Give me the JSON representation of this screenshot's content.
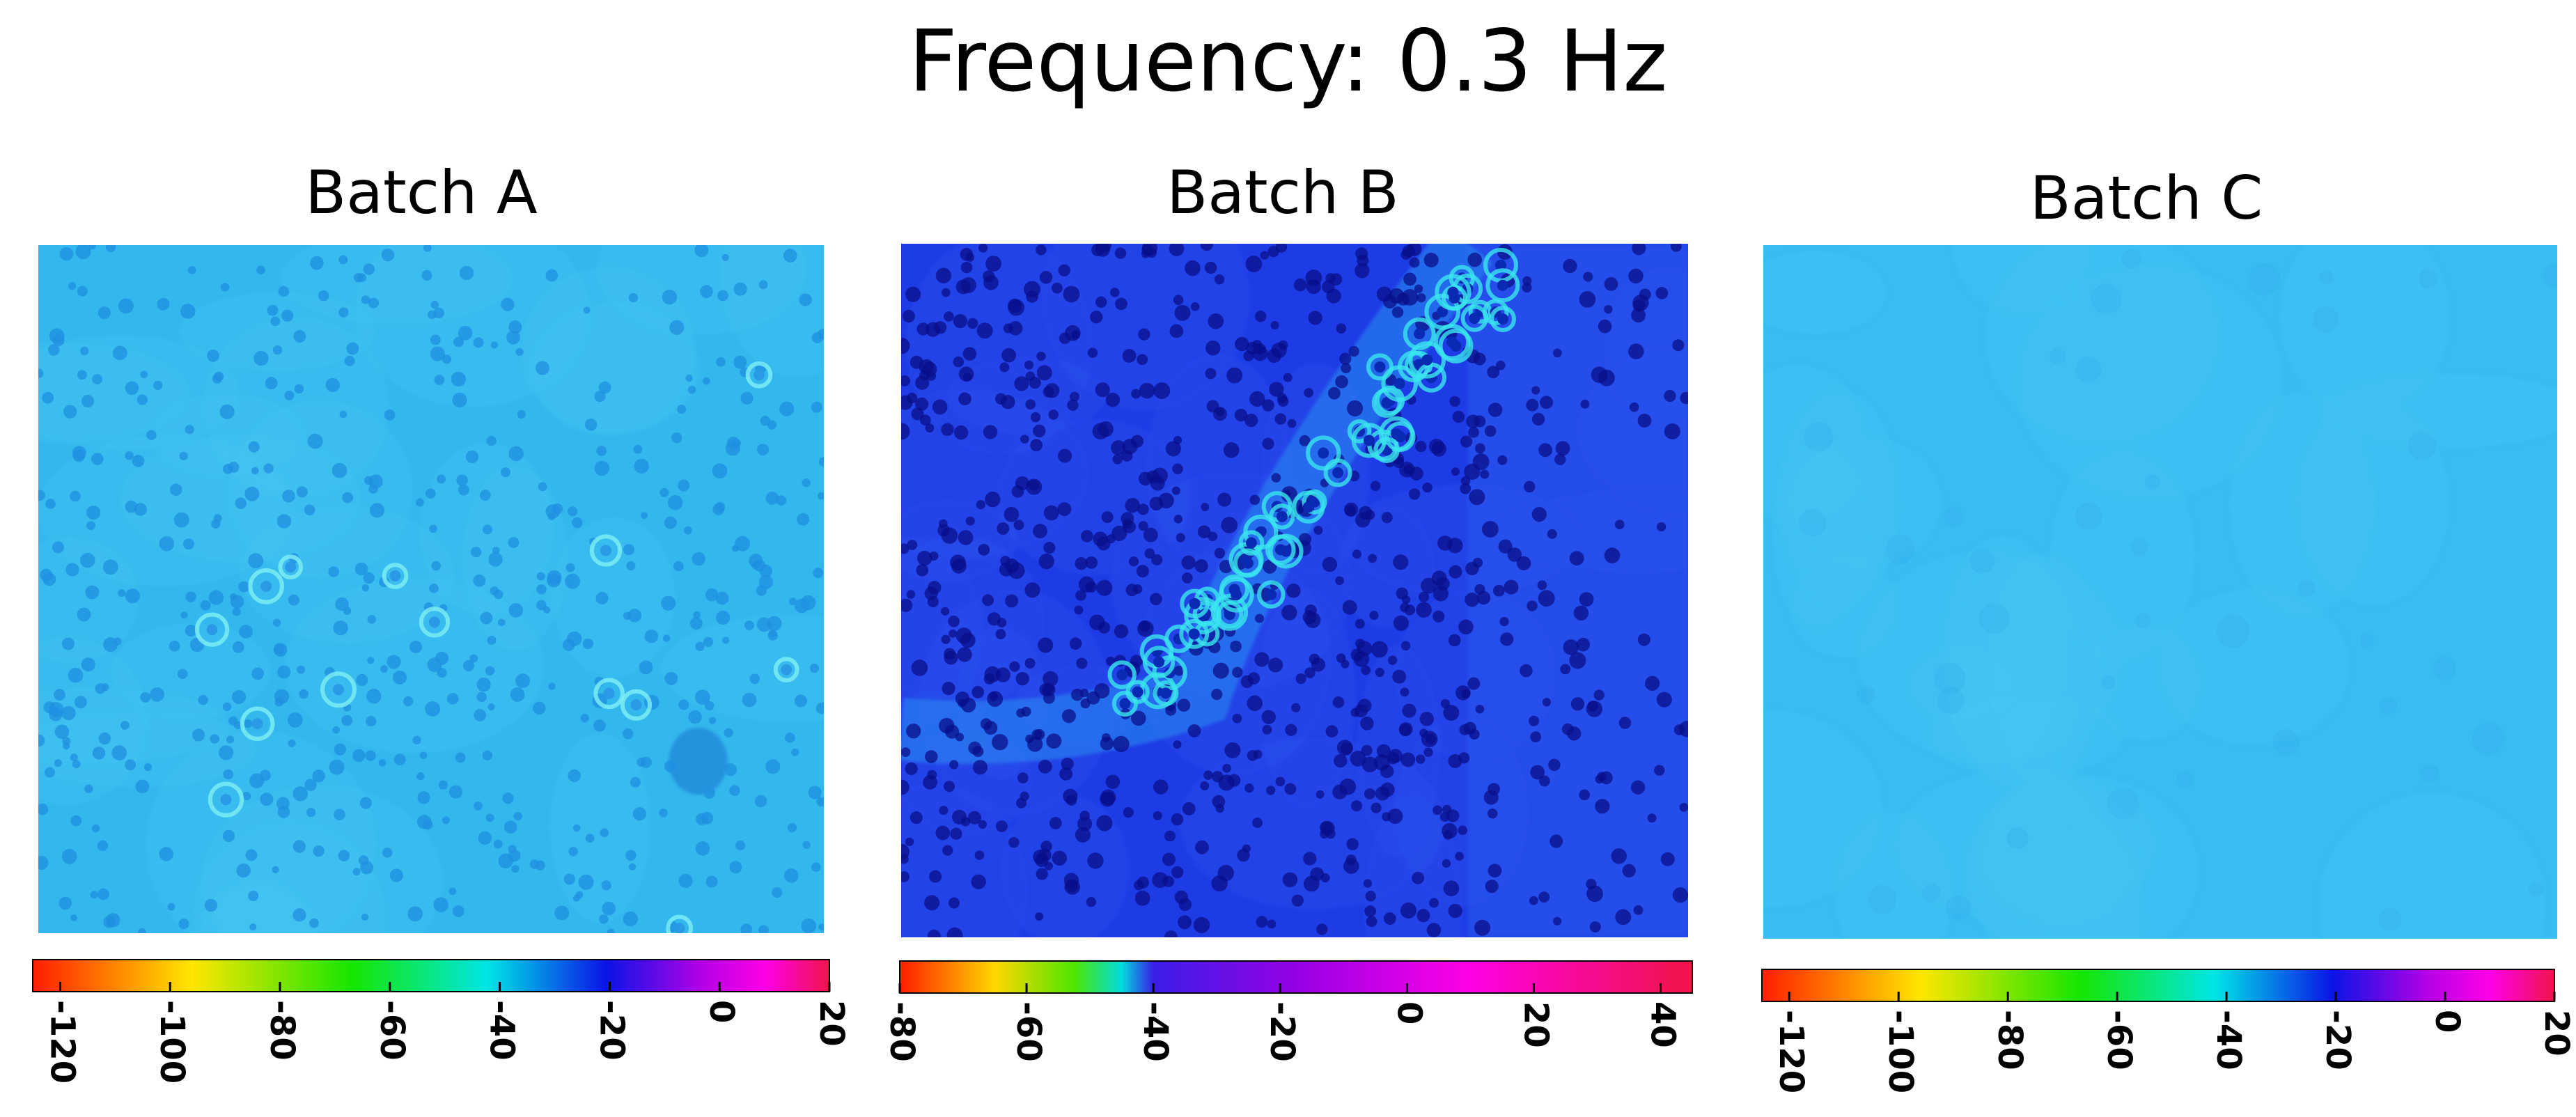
{
  "title": "Frequency: 0.3 Hz",
  "chart_data": [
    {
      "type": "heatmap",
      "title": "Batch A",
      "base_color": "#33b8ee",
      "variation": "small darker-blue pores scattered throughout, a few lighter rings",
      "colorbar": {
        "range": [
          -125,
          20
        ],
        "ticks": [
          -120,
          -100,
          -80,
          -60,
          -40,
          -20,
          0,
          20
        ],
        "tick_labels": [
          "-120",
          "-100",
          "-80",
          "-60",
          "-40",
          "-20",
          "0",
          "20"
        ],
        "colormap": [
          [
            "#ff1e00",
            0
          ],
          [
            "#ffe600",
            0.2
          ],
          [
            "#16e600",
            0.4
          ],
          [
            "#00e6e6",
            0.57
          ],
          [
            "#0a14e6",
            0.72
          ],
          [
            "#b400e6",
            0.84
          ],
          [
            "#ff00e6",
            0.92
          ],
          [
            "#f0144a",
            1
          ]
        ]
      }
    },
    {
      "type": "heatmap",
      "title": "Batch B",
      "base_color": "#1e3ce6",
      "variation": "dense dark-blue pores, a curved band of cyan rings across the center",
      "colorbar": {
        "range": [
          -80,
          45
        ],
        "ticks": [
          -80,
          -60,
          -40,
          -20,
          0,
          20,
          40
        ],
        "tick_labels": [
          "-80",
          "-60",
          "-40",
          "-20",
          "0",
          "20",
          "40"
        ],
        "colormap": [
          [
            "#ff1e00",
            0
          ],
          [
            "#ffd700",
            0.12
          ],
          [
            "#4ee600",
            0.22
          ],
          [
            "#00dcdc",
            0.28
          ],
          [
            "#3a1ee6",
            0.32
          ],
          [
            "#9600e6",
            0.5
          ],
          [
            "#ff00e6",
            0.72
          ],
          [
            "#f01446",
            1
          ]
        ]
      }
    },
    {
      "type": "heatmap",
      "title": "Batch C",
      "base_color": "#38bcf2",
      "variation": "nearly uniform light blue field",
      "colorbar": {
        "range": [
          -125,
          20
        ],
        "ticks": [
          -120,
          -100,
          -80,
          -60,
          -40,
          -20,
          0,
          20
        ],
        "tick_labels": [
          "-120",
          "-100",
          "-80",
          "-60",
          "-40",
          "-20",
          "0",
          "20"
        ],
        "colormap": [
          [
            "#ff1e00",
            0
          ],
          [
            "#ffe600",
            0.2
          ],
          [
            "#16e600",
            0.4
          ],
          [
            "#00e6e6",
            0.57
          ],
          [
            "#0a14e6",
            0.72
          ],
          [
            "#b400e6",
            0.84
          ],
          [
            "#ff00e6",
            0.92
          ],
          [
            "#f0144a",
            1
          ]
        ]
      }
    }
  ]
}
